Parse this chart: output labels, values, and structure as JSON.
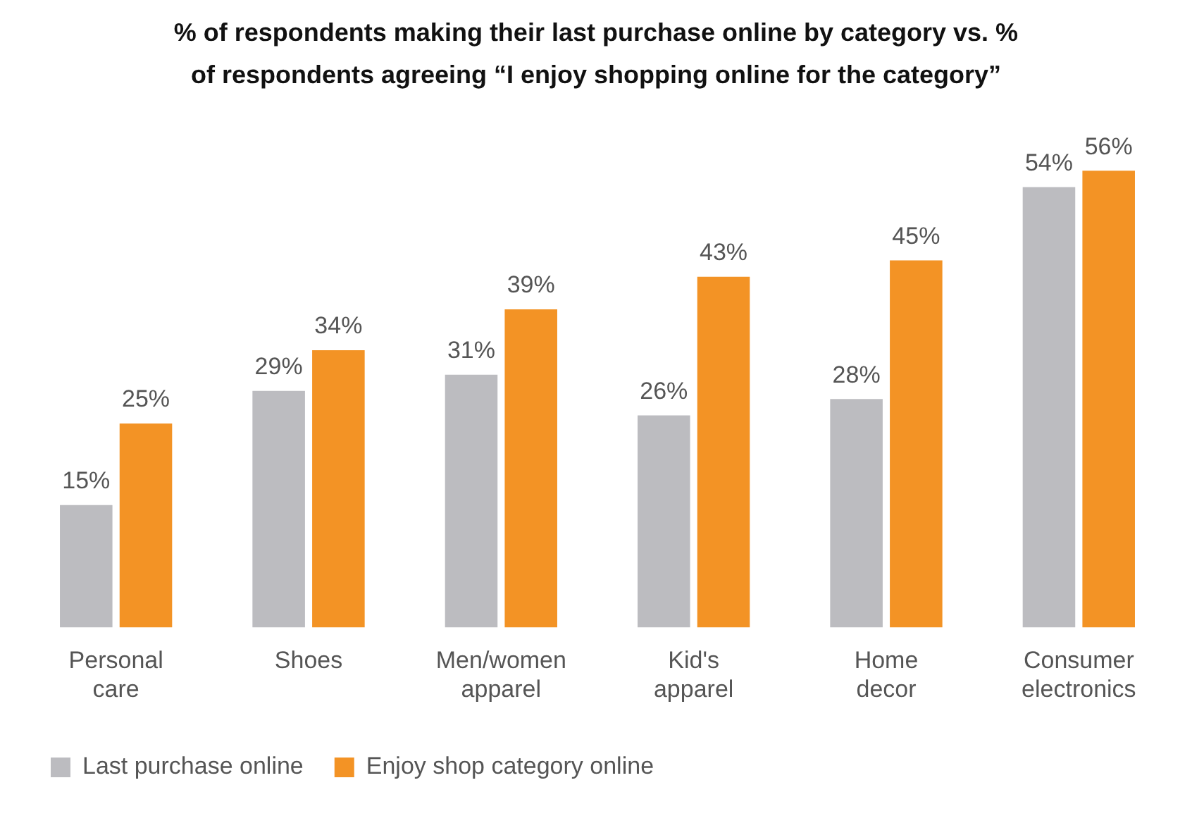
{
  "chart_data": {
    "type": "bar",
    "title": "% of respondents making their last purchase online by category vs. % of respondents agreeing “I enjoy shopping online for the category”",
    "categories": [
      "Personal care",
      "Shoes",
      "Men/women apparel",
      "Kid's apparel",
      "Home decor",
      "Consumer electronics"
    ],
    "series": [
      {
        "name": "Last purchase online",
        "color": "#bcbcc0",
        "values": [
          15,
          29,
          31,
          26,
          28,
          54
        ],
        "value_labels": [
          "15%",
          "29%",
          "31%",
          "26%",
          "28%",
          "54%"
        ]
      },
      {
        "name": "Enjoy shop category online",
        "color": "#f39325",
        "values": [
          25,
          34,
          39,
          43,
          45,
          56
        ],
        "value_labels": [
          "25%",
          "34%",
          "39%",
          "43%",
          "45%",
          "56%"
        ]
      }
    ],
    "grid": false,
    "legend": "bottom left"
  }
}
